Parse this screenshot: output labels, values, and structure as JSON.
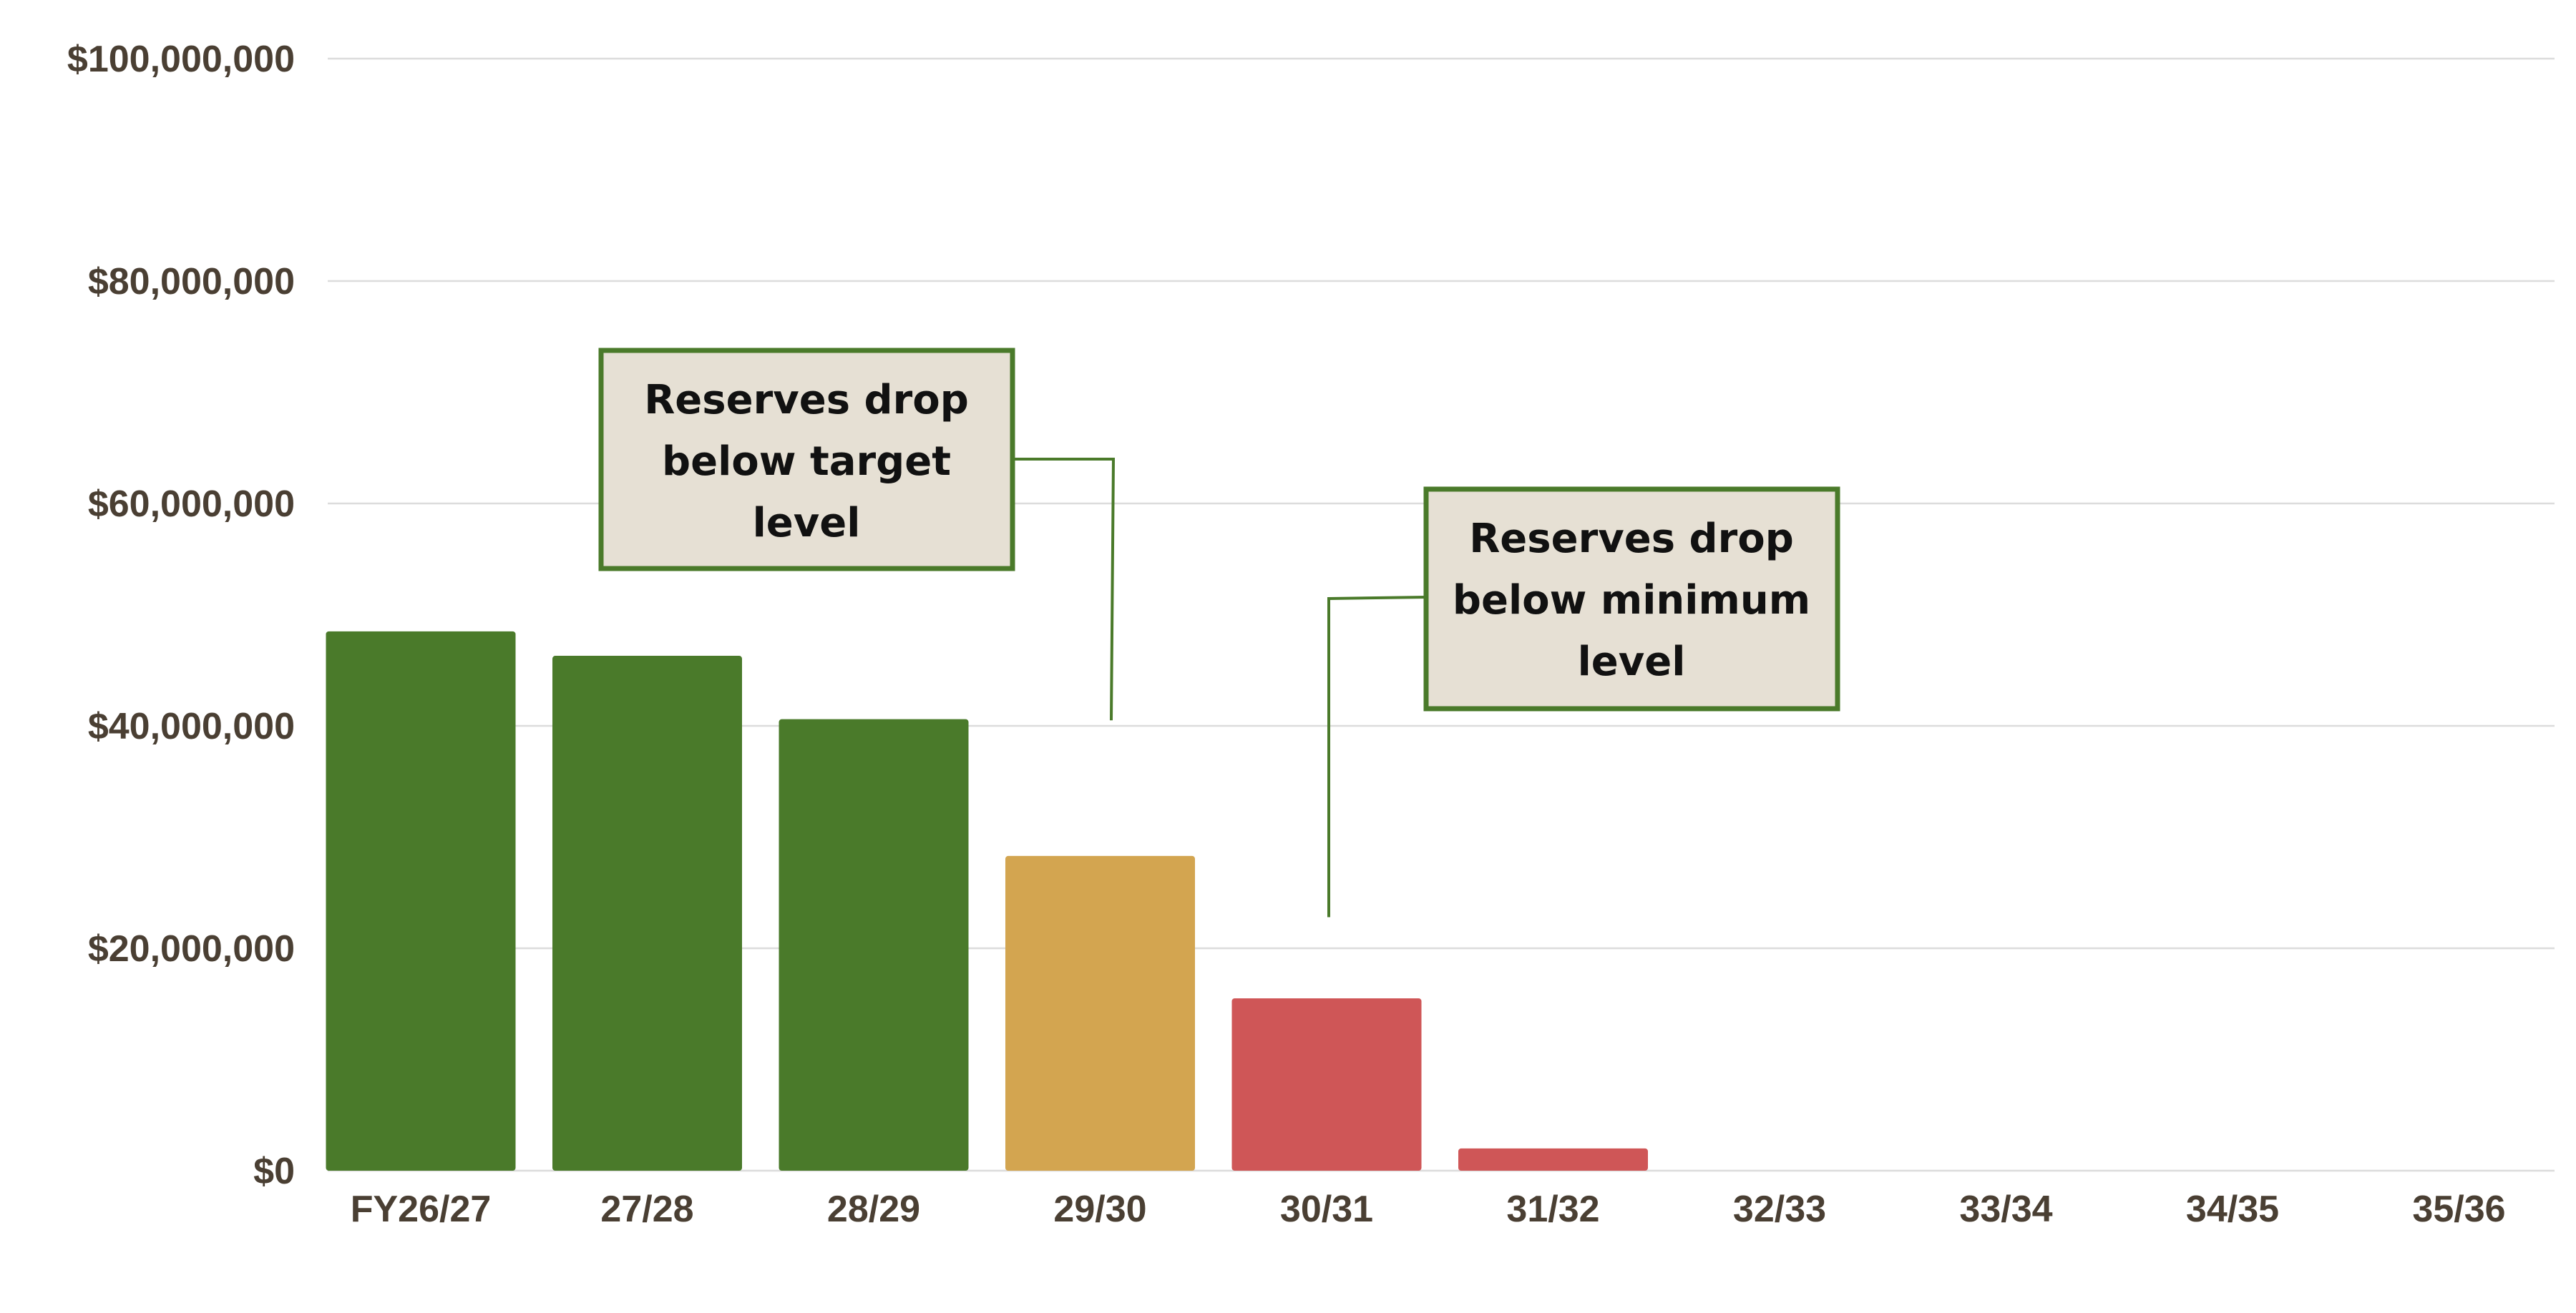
{
  "chart_data": {
    "type": "bar",
    "categories": [
      "FY26/27",
      "27/28",
      "28/29",
      "29/30",
      "30/31",
      "31/32",
      "32/33",
      "33/34",
      "34/35",
      "35/36"
    ],
    "values": [
      48500000,
      46300000,
      40600000,
      28300000,
      15500000,
      2000000,
      0,
      0,
      0,
      0
    ],
    "bar_colors": [
      "#4a7a2a",
      "#4a7a2a",
      "#4a7a2a",
      "#d3a550",
      "#cf5657",
      "#cf5657",
      "#cf5657",
      "#cf5657",
      "#cf5657",
      "#cf5657"
    ],
    "ylim": [
      0,
      100000000
    ],
    "y_ticks": [
      0,
      20000000,
      40000000,
      60000000,
      80000000,
      100000000
    ],
    "y_tick_labels": [
      "$0",
      "$20,000,000",
      "$40,000,000",
      "$60,000,000",
      "$80,000,000",
      "$100,000,000"
    ],
    "title": "",
    "xlabel": "",
    "ylabel": "",
    "grid": true,
    "legend": "none",
    "annotations": [
      {
        "lines": [
          "Reserves drop",
          "below target",
          "level"
        ],
        "points_to_category": "29/30",
        "points_to_value": 40500000
      },
      {
        "lines": [
          "Reserves drop",
          "below minimum",
          "level"
        ],
        "points_to_category": "30/31",
        "points_to_value": 22800000
      }
    ],
    "colors": {
      "bar_green": "#4a7a2a",
      "bar_gold": "#d3a550",
      "bar_red": "#cf5657",
      "grid": "#dcdcdc",
      "axis_text": "#4a3f33",
      "annotation_fill": "#e6e0d4",
      "annotation_border": "#4a7a2a"
    }
  }
}
